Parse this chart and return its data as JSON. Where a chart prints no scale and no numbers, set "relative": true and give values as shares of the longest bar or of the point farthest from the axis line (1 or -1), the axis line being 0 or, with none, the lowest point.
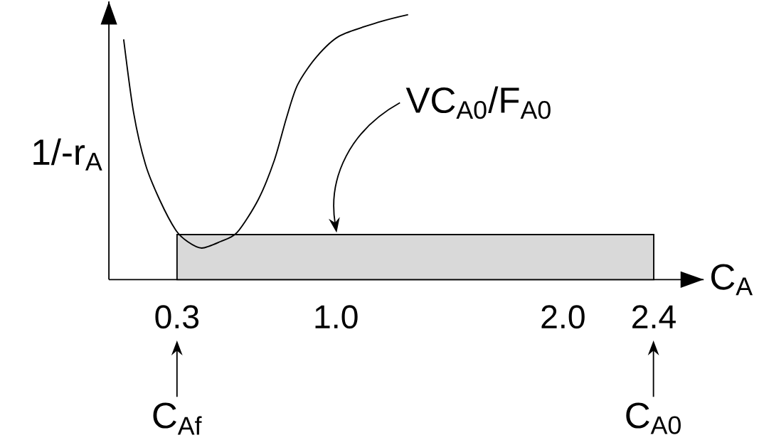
{
  "chart_data": {
    "type": "line",
    "relative": true,
    "xlabel": "C$_{A}$",
    "ylabel": "1/-r$_{A}$",
    "xlim": [
      0,
      2.62
    ],
    "xticks": [
      {
        "value": 0.3,
        "label": "0.3"
      },
      {
        "value": 1.0,
        "label": "1.0"
      },
      {
        "value": 2.0,
        "label": "2.0"
      },
      {
        "value": 2.4,
        "label": "2.4"
      }
    ],
    "series": [
      {
        "color": "#000000",
        "x": [
          0.065,
          0.109,
          0.161,
          0.223,
          0.295,
          0.347,
          0.409,
          0.49,
          0.565,
          0.658,
          0.729,
          0.782,
          0.831,
          0.915,
          1.017,
          1.194,
          1.318
        ],
        "values": [
          0.907,
          0.629,
          0.435,
          0.302,
          0.186,
          0.143,
          0.119,
          0.143,
          0.178,
          0.302,
          0.451,
          0.61,
          0.735,
          0.841,
          0.92,
          0.973,
          1.0
        ]
      },
      {
        "type": "area",
        "color": "#d9d9d9",
        "x": [
          0.3,
          2.4
        ],
        "values": [
          0.17,
          0.17
        ]
      }
    ],
    "annotations": [
      "VC$_{A0}$/F$_{A0}$",
      "C$_{Af}$",
      "C$_{A0}$"
    ]
  }
}
